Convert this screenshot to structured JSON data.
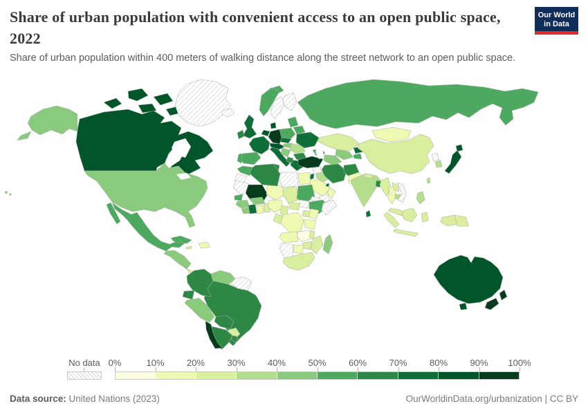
{
  "header": {
    "title": "Share of urban population with convenient access to an open public space, 2022",
    "subtitle": "Share of urban population within 400 meters of walking distance along the street network to an open public space.",
    "logo_line1": "Our World",
    "logo_line2": "in Data",
    "logo_bg": "#102d59",
    "logo_accent": "#e02b2b"
  },
  "map_data": {
    "type": "choropleth",
    "metric": "Share of urban population with convenient access to an open public space",
    "year": "2022",
    "unit": "%",
    "no_data_label": "No data",
    "legend_ticks": [
      "0%",
      "10%",
      "20%",
      "30%",
      "40%",
      "50%",
      "60%",
      "70%",
      "80%",
      "90%",
      "100%"
    ],
    "palette": [
      "#fdfde4",
      "#f0f9b2",
      "#d9ee9f",
      "#b4dd8e",
      "#8aca7c",
      "#4ca95f",
      "#2d8745",
      "#0f6d37",
      "#01552a",
      "#063b1e"
    ],
    "countries": [
      {
        "name": "canada",
        "bin": 8
      },
      {
        "name": "united-states",
        "bin": 4
      },
      {
        "name": "greenland",
        "bin": null
      },
      {
        "name": "mexico",
        "bin": 5
      },
      {
        "name": "guatemala-honduras-nicaragua",
        "bin": 4
      },
      {
        "name": "costa-rica-panama",
        "bin": 2
      },
      {
        "name": "cuba",
        "bin": 5
      },
      {
        "name": "haiti-dominican-republic",
        "bin": 1
      },
      {
        "name": "jamaica",
        "bin": 2
      },
      {
        "name": "colombia",
        "bin": 6
      },
      {
        "name": "venezuela",
        "bin": 4
      },
      {
        "name": "guyana-suriname",
        "bin": null
      },
      {
        "name": "ecuador",
        "bin": 6
      },
      {
        "name": "peru",
        "bin": 4
      },
      {
        "name": "brazil",
        "bin": 6
      },
      {
        "name": "bolivia",
        "bin": 6
      },
      {
        "name": "paraguay",
        "bin": 2
      },
      {
        "name": "chile",
        "bin": 9
      },
      {
        "name": "argentina",
        "bin": 6
      },
      {
        "name": "uruguay",
        "bin": 6
      },
      {
        "name": "iceland",
        "bin": null
      },
      {
        "name": "united-kingdom",
        "bin": 7
      },
      {
        "name": "ireland",
        "bin": 6
      },
      {
        "name": "norway",
        "bin": 5
      },
      {
        "name": "svalbard",
        "bin": 5
      },
      {
        "name": "sweden",
        "bin": null
      },
      {
        "name": "finland",
        "bin": null
      },
      {
        "name": "denmark",
        "bin": 8
      },
      {
        "name": "germany",
        "bin": 9
      },
      {
        "name": "benelux",
        "bin": 8
      },
      {
        "name": "france",
        "bin": 7
      },
      {
        "name": "spain",
        "bin": 5
      },
      {
        "name": "portugal",
        "bin": 5
      },
      {
        "name": "italy",
        "bin": 7
      },
      {
        "name": "switzerland-austria",
        "bin": 8
      },
      {
        "name": "poland",
        "bin": 5
      },
      {
        "name": "czechia-slovakia",
        "bin": 7
      },
      {
        "name": "hungary",
        "bin": 4
      },
      {
        "name": "balkans-west",
        "bin": 4
      },
      {
        "name": "romania",
        "bin": 3
      },
      {
        "name": "bulgaria",
        "bin": 6
      },
      {
        "name": "greece",
        "bin": 7
      },
      {
        "name": "albania-north-macedonia",
        "bin": 6
      },
      {
        "name": "baltics",
        "bin": 5
      },
      {
        "name": "belarus",
        "bin": 5
      },
      {
        "name": "ukraine",
        "bin": 7
      },
      {
        "name": "russia",
        "bin": 5
      },
      {
        "name": "kazakhstan",
        "bin": 2
      },
      {
        "name": "uzbekistan",
        "bin": 4
      },
      {
        "name": "turkmenistan",
        "bin": 4
      },
      {
        "name": "kyrgyzstan",
        "bin": 7
      },
      {
        "name": "tajikistan",
        "bin": 5
      },
      {
        "name": "caucasus",
        "bin": 5
      },
      {
        "name": "turkey",
        "bin": 9
      },
      {
        "name": "syria",
        "bin": null
      },
      {
        "name": "israel-jordan",
        "bin": 7
      },
      {
        "name": "iraq",
        "bin": 3
      },
      {
        "name": "iran",
        "bin": 6
      },
      {
        "name": "afghanistan",
        "bin": 6
      },
      {
        "name": "pakistan",
        "bin": 1
      },
      {
        "name": "saudi-arabia",
        "bin": 1
      },
      {
        "name": "yemen",
        "bin": null
      },
      {
        "name": "oman",
        "bin": 1
      },
      {
        "name": "qatar",
        "bin": 7
      },
      {
        "name": "morocco",
        "bin": 5
      },
      {
        "name": "western-sahara",
        "bin": null
      },
      {
        "name": "mauritania",
        "bin": null
      },
      {
        "name": "mali",
        "bin": 9
      },
      {
        "name": "senegal",
        "bin": 5
      },
      {
        "name": "guinea",
        "bin": 4
      },
      {
        "name": "sierra-leone-liberia",
        "bin": 4
      },
      {
        "name": "cote-divoire",
        "bin": 7
      },
      {
        "name": "ghana",
        "bin": 1
      },
      {
        "name": "togo-benin",
        "bin": 2
      },
      {
        "name": "burkina-faso",
        "bin": 4
      },
      {
        "name": "niger",
        "bin": 1
      },
      {
        "name": "nigeria",
        "bin": 1
      },
      {
        "name": "chad",
        "bin": 2
      },
      {
        "name": "libya",
        "bin": null
      },
      {
        "name": "tunisia",
        "bin": 6
      },
      {
        "name": "algeria",
        "bin": 6
      },
      {
        "name": "egypt",
        "bin": 1
      },
      {
        "name": "sudan",
        "bin": 5
      },
      {
        "name": "eritrea",
        "bin": null
      },
      {
        "name": "ethiopia",
        "bin": 5
      },
      {
        "name": "somalia",
        "bin": null
      },
      {
        "name": "south-sudan",
        "bin": null
      },
      {
        "name": "central-african-republic",
        "bin": 2
      },
      {
        "name": "cameroon",
        "bin": 2
      },
      {
        "name": "dr-congo",
        "bin": 1
      },
      {
        "name": "congo-gabon",
        "bin": 2
      },
      {
        "name": "uganda",
        "bin": 2
      },
      {
        "name": "kenya",
        "bin": 1
      },
      {
        "name": "tanzania",
        "bin": 1
      },
      {
        "name": "angola",
        "bin": 1
      },
      {
        "name": "zambia",
        "bin": 0
      },
      {
        "name": "malawi",
        "bin": 2
      },
      {
        "name": "mozambique",
        "bin": 2
      },
      {
        "name": "zimbabwe",
        "bin": 2
      },
      {
        "name": "botswana",
        "bin": 1
      },
      {
        "name": "namibia",
        "bin": null
      },
      {
        "name": "south-africa",
        "bin": 2
      },
      {
        "name": "madagascar",
        "bin": 4
      },
      {
        "name": "mongolia",
        "bin": 1
      },
      {
        "name": "china",
        "bin": 2
      },
      {
        "name": "north-korea",
        "bin": null
      },
      {
        "name": "south-korea",
        "bin": 3
      },
      {
        "name": "japan",
        "bin": 8
      },
      {
        "name": "india",
        "bin": 3
      },
      {
        "name": "nepal",
        "bin": 2
      },
      {
        "name": "bangladesh",
        "bin": 6
      },
      {
        "name": "sri-lanka",
        "bin": 7
      },
      {
        "name": "myanmar",
        "bin": 2
      },
      {
        "name": "thailand",
        "bin": 1
      },
      {
        "name": "laos",
        "bin": 2
      },
      {
        "name": "cambodia",
        "bin": 3
      },
      {
        "name": "vietnam",
        "bin": null
      },
      {
        "name": "malaysia",
        "bin": 2
      },
      {
        "name": "indonesia",
        "bin": 2
      },
      {
        "name": "philippines",
        "bin": 3
      },
      {
        "name": "taiwan",
        "bin": 3
      },
      {
        "name": "papua-new-guinea",
        "bin": 2
      },
      {
        "name": "australia",
        "bin": 8
      },
      {
        "name": "new-zealand",
        "bin": 9
      }
    ]
  },
  "footer": {
    "source_label": "Data source:",
    "source_value": " United Nations (2023)",
    "credit": "OurWorldinData.org/urbanization | CC BY"
  }
}
